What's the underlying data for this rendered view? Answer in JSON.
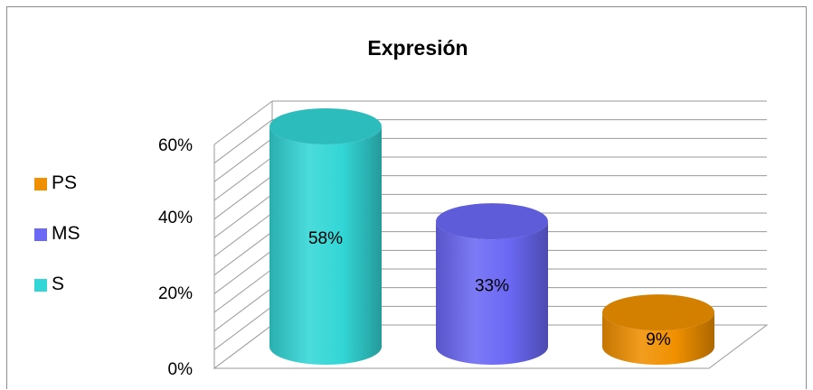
{
  "chart_data": {
    "type": "bar",
    "style": "3d-cylinder",
    "title": "Expresión",
    "categories": [
      "S",
      "MS",
      "PS"
    ],
    "values": [
      58,
      33,
      9
    ],
    "data_labels": [
      "58%",
      "33%",
      "9%"
    ],
    "colors": [
      "#33d6d6",
      "#6b68f5",
      "#f09000"
    ],
    "y_ticks": [
      "0%",
      "20%",
      "40%",
      "60%"
    ],
    "ylim": [
      0,
      60
    ],
    "grid": true,
    "legend_position": "left",
    "legend": [
      {
        "label": "PS",
        "color": "#f09000"
      },
      {
        "label": "MS",
        "color": "#6b68f5"
      },
      {
        "label": "S",
        "color": "#33d6d6"
      }
    ]
  }
}
